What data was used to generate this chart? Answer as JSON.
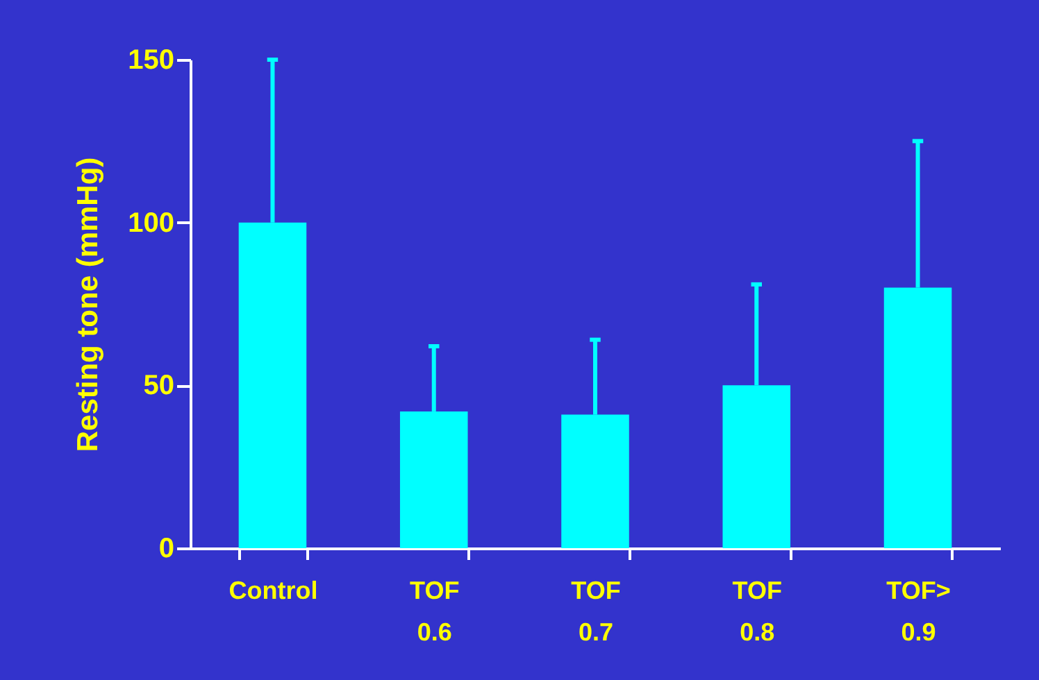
{
  "chart_data": {
    "type": "bar",
    "ylabel": "Resting tone (mmHg)",
    "categories": [
      "Control",
      "TOF 0.6",
      "TOF 0.7",
      "TOF 0.8",
      "TOF> 0.9"
    ],
    "values": [
      100,
      42,
      41,
      50,
      80
    ],
    "errors": [
      [
        100,
        150
      ],
      [
        42,
        62
      ],
      [
        41,
        64
      ],
      [
        50,
        81
      ],
      [
        80,
        125
      ]
    ],
    "color": "#00ffff",
    "ylim": [
      0,
      150
    ],
    "yticks": [
      0,
      50,
      100,
      150
    ],
    "grid": false
  }
}
